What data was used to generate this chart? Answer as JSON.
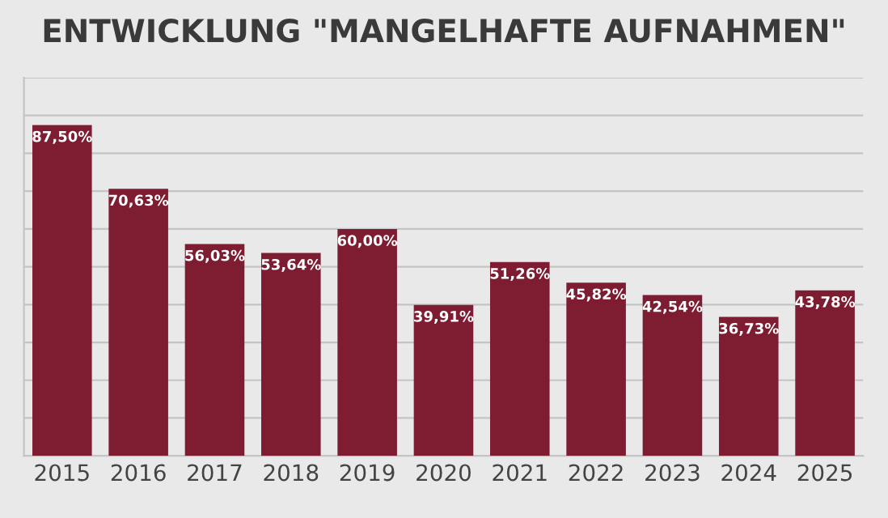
{
  "chart_data": {
    "type": "bar",
    "title": "ENTWICKLUNG \"MANGELHAFTE AUFNAHMEN\"",
    "categories": [
      "2015",
      "2016",
      "2017",
      "2018",
      "2019",
      "2020",
      "2021",
      "2022",
      "2023",
      "2024",
      "2025"
    ],
    "values": [
      87.5,
      70.63,
      56.03,
      53.64,
      60.0,
      39.91,
      51.26,
      45.82,
      42.54,
      36.73,
      43.78
    ],
    "value_labels": [
      "87,50%",
      "70,63%",
      "56,03%",
      "53,64%",
      "60,00%",
      "39,91%",
      "51,26%",
      "45,82%",
      "42,54%",
      "36,73%",
      "43,78%"
    ],
    "color": "#7e1d32",
    "ylim": [
      0,
      100
    ],
    "yticks": [
      {
        "value": 0,
        "label": null
      },
      {
        "value": 10,
        "label": null
      },
      {
        "value": 20,
        "label": null
      },
      {
        "value": 30,
        "label": null
      },
      {
        "value": 40,
        "label": null
      },
      {
        "value": 50,
        "label": null
      },
      {
        "value": 60,
        "label": null
      },
      {
        "value": 70,
        "label": null
      },
      {
        "value": 80,
        "label": null
      },
      {
        "value": 90,
        "label": null
      },
      {
        "value": 100,
        "label": null
      }
    ],
    "grid": "y"
  }
}
